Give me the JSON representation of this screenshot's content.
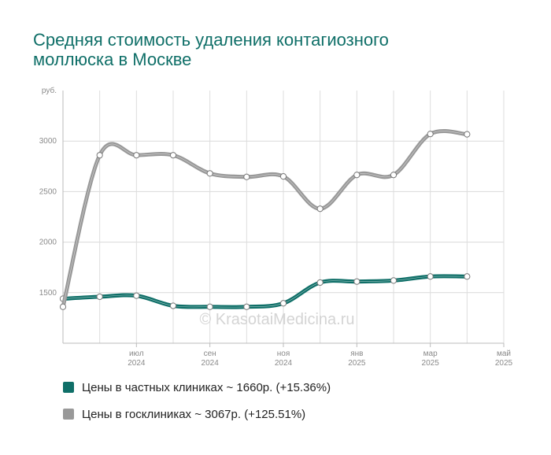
{
  "title_line1": "Средняя стоимость удаления контагиозного",
  "title_line2": "моллюска в Москве",
  "watermark": "© KrasotaiMedicina.ru",
  "colors": {
    "private": "#0f6f68",
    "public": "#999999",
    "title": "#0f6f68"
  },
  "legend": [
    {
      "key": "private",
      "label": "Цены в частных клиниках ~ 1660р. (+15.36%)"
    },
    {
      "key": "public",
      "label": "Цены в госклиниках ~ 3067р. (+125.51%)"
    }
  ],
  "chart_data": {
    "type": "line",
    "ylabel": "руб.",
    "ylim": [
      1000,
      3500
    ],
    "yticks": [
      1500,
      2000,
      2500,
      3000
    ],
    "x_tick_labels": [
      {
        "month": "июл",
        "year": "2024"
      },
      {
        "month": "сен",
        "year": "2024"
      },
      {
        "month": "ноя",
        "year": "2024"
      },
      {
        "month": "янв",
        "year": "2025"
      },
      {
        "month": "мар",
        "year": "2025"
      },
      {
        "month": "май",
        "year": "2025"
      }
    ],
    "x": [
      "2024-05",
      "2024-06",
      "2024-07",
      "2024-08",
      "2024-09",
      "2024-10",
      "2024-11",
      "2024-12",
      "2025-01",
      "2025-02",
      "2025-03",
      "2025-04",
      "2025-05"
    ],
    "series": [
      {
        "name": "Цены в частных клиниках",
        "key": "private",
        "values": [
          1440,
          1460,
          1470,
          1370,
          1360,
          1360,
          1395,
          1600,
          1610,
          1620,
          1660,
          1660,
          null
        ]
      },
      {
        "name": "Цены в госклиниках",
        "key": "public",
        "values": [
          1360,
          2860,
          2860,
          2860,
          2680,
          2645,
          2650,
          2330,
          2665,
          2665,
          3070,
          3067,
          null
        ]
      }
    ],
    "grid": true
  }
}
